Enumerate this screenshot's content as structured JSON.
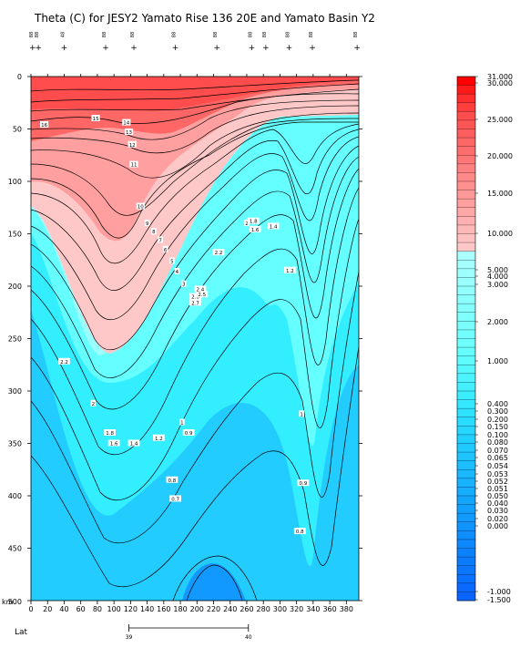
{
  "chart_data": {
    "type": "heatmap",
    "title": "Theta (C) for JESY2 Yamato Rise 136 20E and Yamato Basin Y2",
    "xlabel": "km",
    "ylabel": "",
    "xlim": [
      0,
      395
    ],
    "ylim": [
      500,
      0
    ],
    "x_ticks": [
      0,
      20,
      40,
      60,
      80,
      100,
      120,
      140,
      160,
      180,
      200,
      220,
      240,
      260,
      280,
      300,
      320,
      340,
      360,
      380
    ],
    "y_ticks": [
      0,
      50,
      100,
      150,
      200,
      250,
      300,
      350,
      400,
      450,
      500
    ],
    "lat_label": "Lat",
    "lat_ticks": [
      {
        "km": 118,
        "label": "39"
      },
      {
        "km": 262,
        "label": "40"
      }
    ],
    "stations": [
      {
        "km": 2,
        "label": "88"
      },
      {
        "km": 9,
        "label": "88"
      },
      {
        "km": 40,
        "label": "48"
      },
      {
        "km": 90,
        "label": "88"
      },
      {
        "km": 124,
        "label": "88"
      },
      {
        "km": 174,
        "label": "88"
      },
      {
        "km": 224,
        "label": "88"
      },
      {
        "km": 266,
        "label": "88"
      },
      {
        "km": 283,
        "label": "88"
      },
      {
        "km": 311,
        "label": "88"
      },
      {
        "km": 339,
        "label": "88"
      },
      {
        "km": 393,
        "label": "88"
      }
    ],
    "contour_labels": [
      {
        "x": 16,
        "y": 46,
        "label": "16"
      },
      {
        "x": 78,
        "y": 40,
        "label": "15"
      },
      {
        "x": 115,
        "y": 44,
        "label": "14"
      },
      {
        "x": 118,
        "y": 53,
        "label": "13"
      },
      {
        "x": 122,
        "y": 65,
        "label": "12"
      },
      {
        "x": 124,
        "y": 84,
        "label": "11"
      },
      {
        "x": 132,
        "y": 124,
        "label": "10"
      },
      {
        "x": 140,
        "y": 140,
        "label": "9"
      },
      {
        "x": 148,
        "y": 148,
        "label": "8"
      },
      {
        "x": 156,
        "y": 156,
        "label": "7"
      },
      {
        "x": 162,
        "y": 165,
        "label": "6"
      },
      {
        "x": 170,
        "y": 176,
        "label": "5"
      },
      {
        "x": 176,
        "y": 186,
        "label": "4"
      },
      {
        "x": 184,
        "y": 198,
        "label": "3"
      },
      {
        "x": 198,
        "y": 210,
        "label": "2.6"
      },
      {
        "x": 206,
        "y": 208,
        "label": "2.5"
      },
      {
        "x": 198,
        "y": 216,
        "label": "2.7"
      },
      {
        "x": 204,
        "y": 203,
        "label": "2.4"
      },
      {
        "x": 226,
        "y": 168,
        "label": "2.2"
      },
      {
        "x": 260,
        "y": 140,
        "label": "2"
      },
      {
        "x": 268,
        "y": 138,
        "label": "1.8"
      },
      {
        "x": 270,
        "y": 146,
        "label": "1.6"
      },
      {
        "x": 292,
        "y": 143,
        "label": "1.4"
      },
      {
        "x": 312,
        "y": 185,
        "label": "1.2"
      },
      {
        "x": 40,
        "y": 272,
        "label": "2.2"
      },
      {
        "x": 75,
        "y": 312,
        "label": "2"
      },
      {
        "x": 95,
        "y": 340,
        "label": "1.8"
      },
      {
        "x": 100,
        "y": 350,
        "label": "1.6"
      },
      {
        "x": 124,
        "y": 350,
        "label": "1.4"
      },
      {
        "x": 154,
        "y": 345,
        "label": "1.2"
      },
      {
        "x": 182,
        "y": 330,
        "label": "1"
      },
      {
        "x": 190,
        "y": 340,
        "label": "0.9"
      },
      {
        "x": 170,
        "y": 385,
        "label": "0.8"
      },
      {
        "x": 174,
        "y": 403,
        "label": "0.7"
      },
      {
        "x": 326,
        "y": 322,
        "label": "1"
      },
      {
        "x": 328,
        "y": 388,
        "label": "0.9"
      },
      {
        "x": 324,
        "y": 434,
        "label": "0.8"
      }
    ],
    "colorbar": {
      "labels": [
        "31.000",
        "30.000",
        "25.000",
        "20.000",
        "15.000",
        "10.000",
        "5.000",
        "4.000",
        "3.000",
        "2.000",
        "1.000",
        "0.400",
        "0.300",
        "0.200",
        "0.150",
        "0.100",
        "0.080",
        "0.070",
        "0.065",
        "0.054",
        "0.053",
        "0.052",
        "0.051",
        "0.050",
        "0.040",
        "0.030",
        "0.020",
        "0.000",
        "-1.000",
        "-1.500"
      ]
    },
    "colors": {
      "red_dark": "#ff4d4d",
      "red": "#ff6666",
      "pink": "#ff9f9f",
      "pink_light": "#ffc8c8",
      "cyan_light": "#99ffff",
      "cyan": "#66ffff",
      "cyan_mid": "#33eeff",
      "blue": "#22ccff",
      "blue_dark": "#1199ff"
    }
  }
}
